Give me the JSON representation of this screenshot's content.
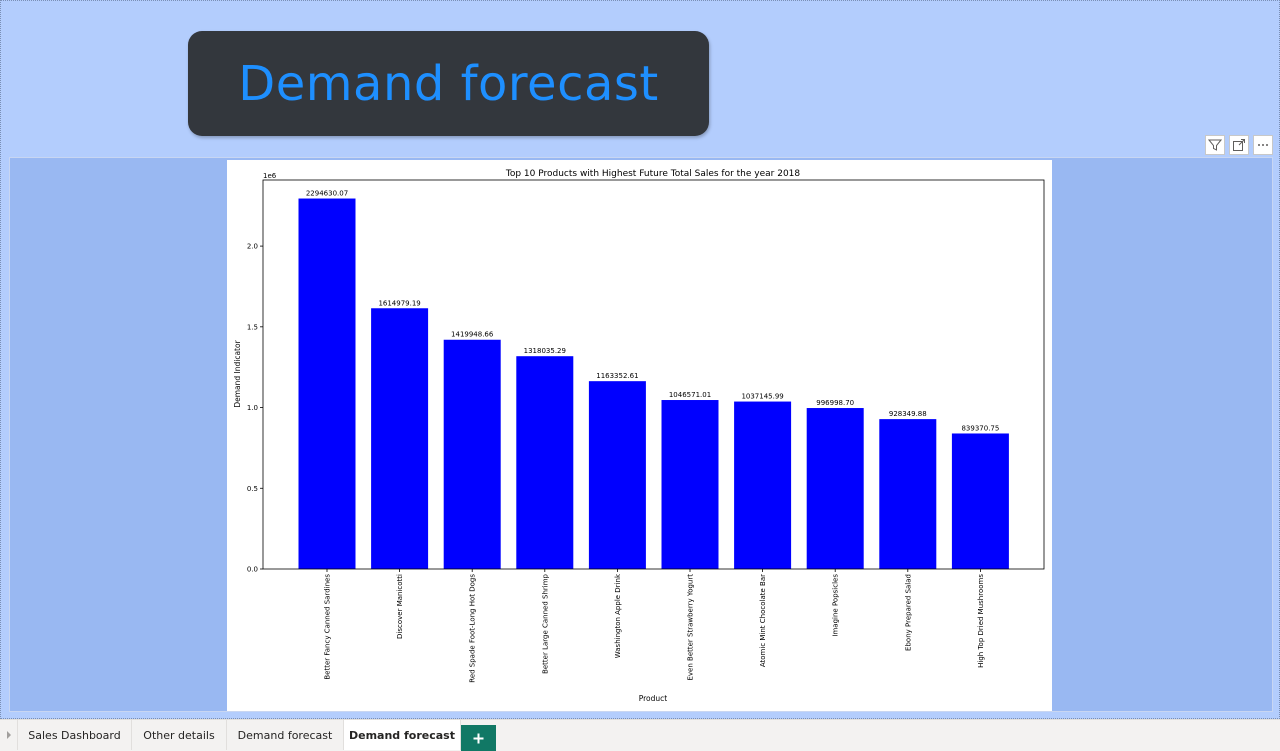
{
  "title_box": {
    "text": "Demand forecast"
  },
  "visual_header": {
    "icons": [
      "filter-icon",
      "focus-mode-icon",
      "more-options-icon"
    ]
  },
  "chart_data": {
    "type": "bar",
    "title": "Top 10 Products with Highest Future Total Sales for the year 2018",
    "xlabel": "Product",
    "ylabel": "Demand Indicator",
    "y_scale_label": "1e6",
    "ylim": [
      0,
      2409361.6
    ],
    "yticks": [
      0,
      0.5,
      1.0,
      1.5,
      2.0
    ],
    "ytick_labels": [
      "0.0",
      "0.5",
      "1.0",
      "1.5",
      "2.0"
    ],
    "grid": false,
    "bar_color": "#0000ff",
    "categories": [
      "Better Fancy Canned Sardines",
      "Discover Manicotti",
      "Red Spade Foot-Long Hot Dogs",
      "Better Large Canned Shrimp",
      "Washington Apple Drink",
      "Even Better Strawberry Yogurt",
      "Atomic Mint Chocolate Bar",
      "Imagine Popsicles",
      "Ebony Prepared Salad",
      "High Top Dried Mushrooms"
    ],
    "values": [
      2294630.07,
      1614979.19,
      1419948.66,
      1318035.29,
      1163352.61,
      1046571.01,
      1037145.99,
      996998.7,
      928349.88,
      839370.75
    ],
    "value_labels": [
      "2294630.07",
      "1614979.19",
      "1419948.66",
      "1318035.29",
      "1163352.61",
      "1046571.01",
      "1037145.99",
      "996998.70",
      "928349.88",
      "839370.75"
    ]
  },
  "tabs": [
    {
      "label": "Sales Dashboard",
      "active": false
    },
    {
      "label": "Other details",
      "active": false
    },
    {
      "label": "Demand forecast",
      "active": false
    },
    {
      "label": "Demand forecast",
      "active": true
    }
  ],
  "colors": {
    "canvas_bg": "#b3cdfd",
    "title_bg": "#33373d",
    "title_fg": "#1e8fff",
    "add_tab": "#117865"
  }
}
